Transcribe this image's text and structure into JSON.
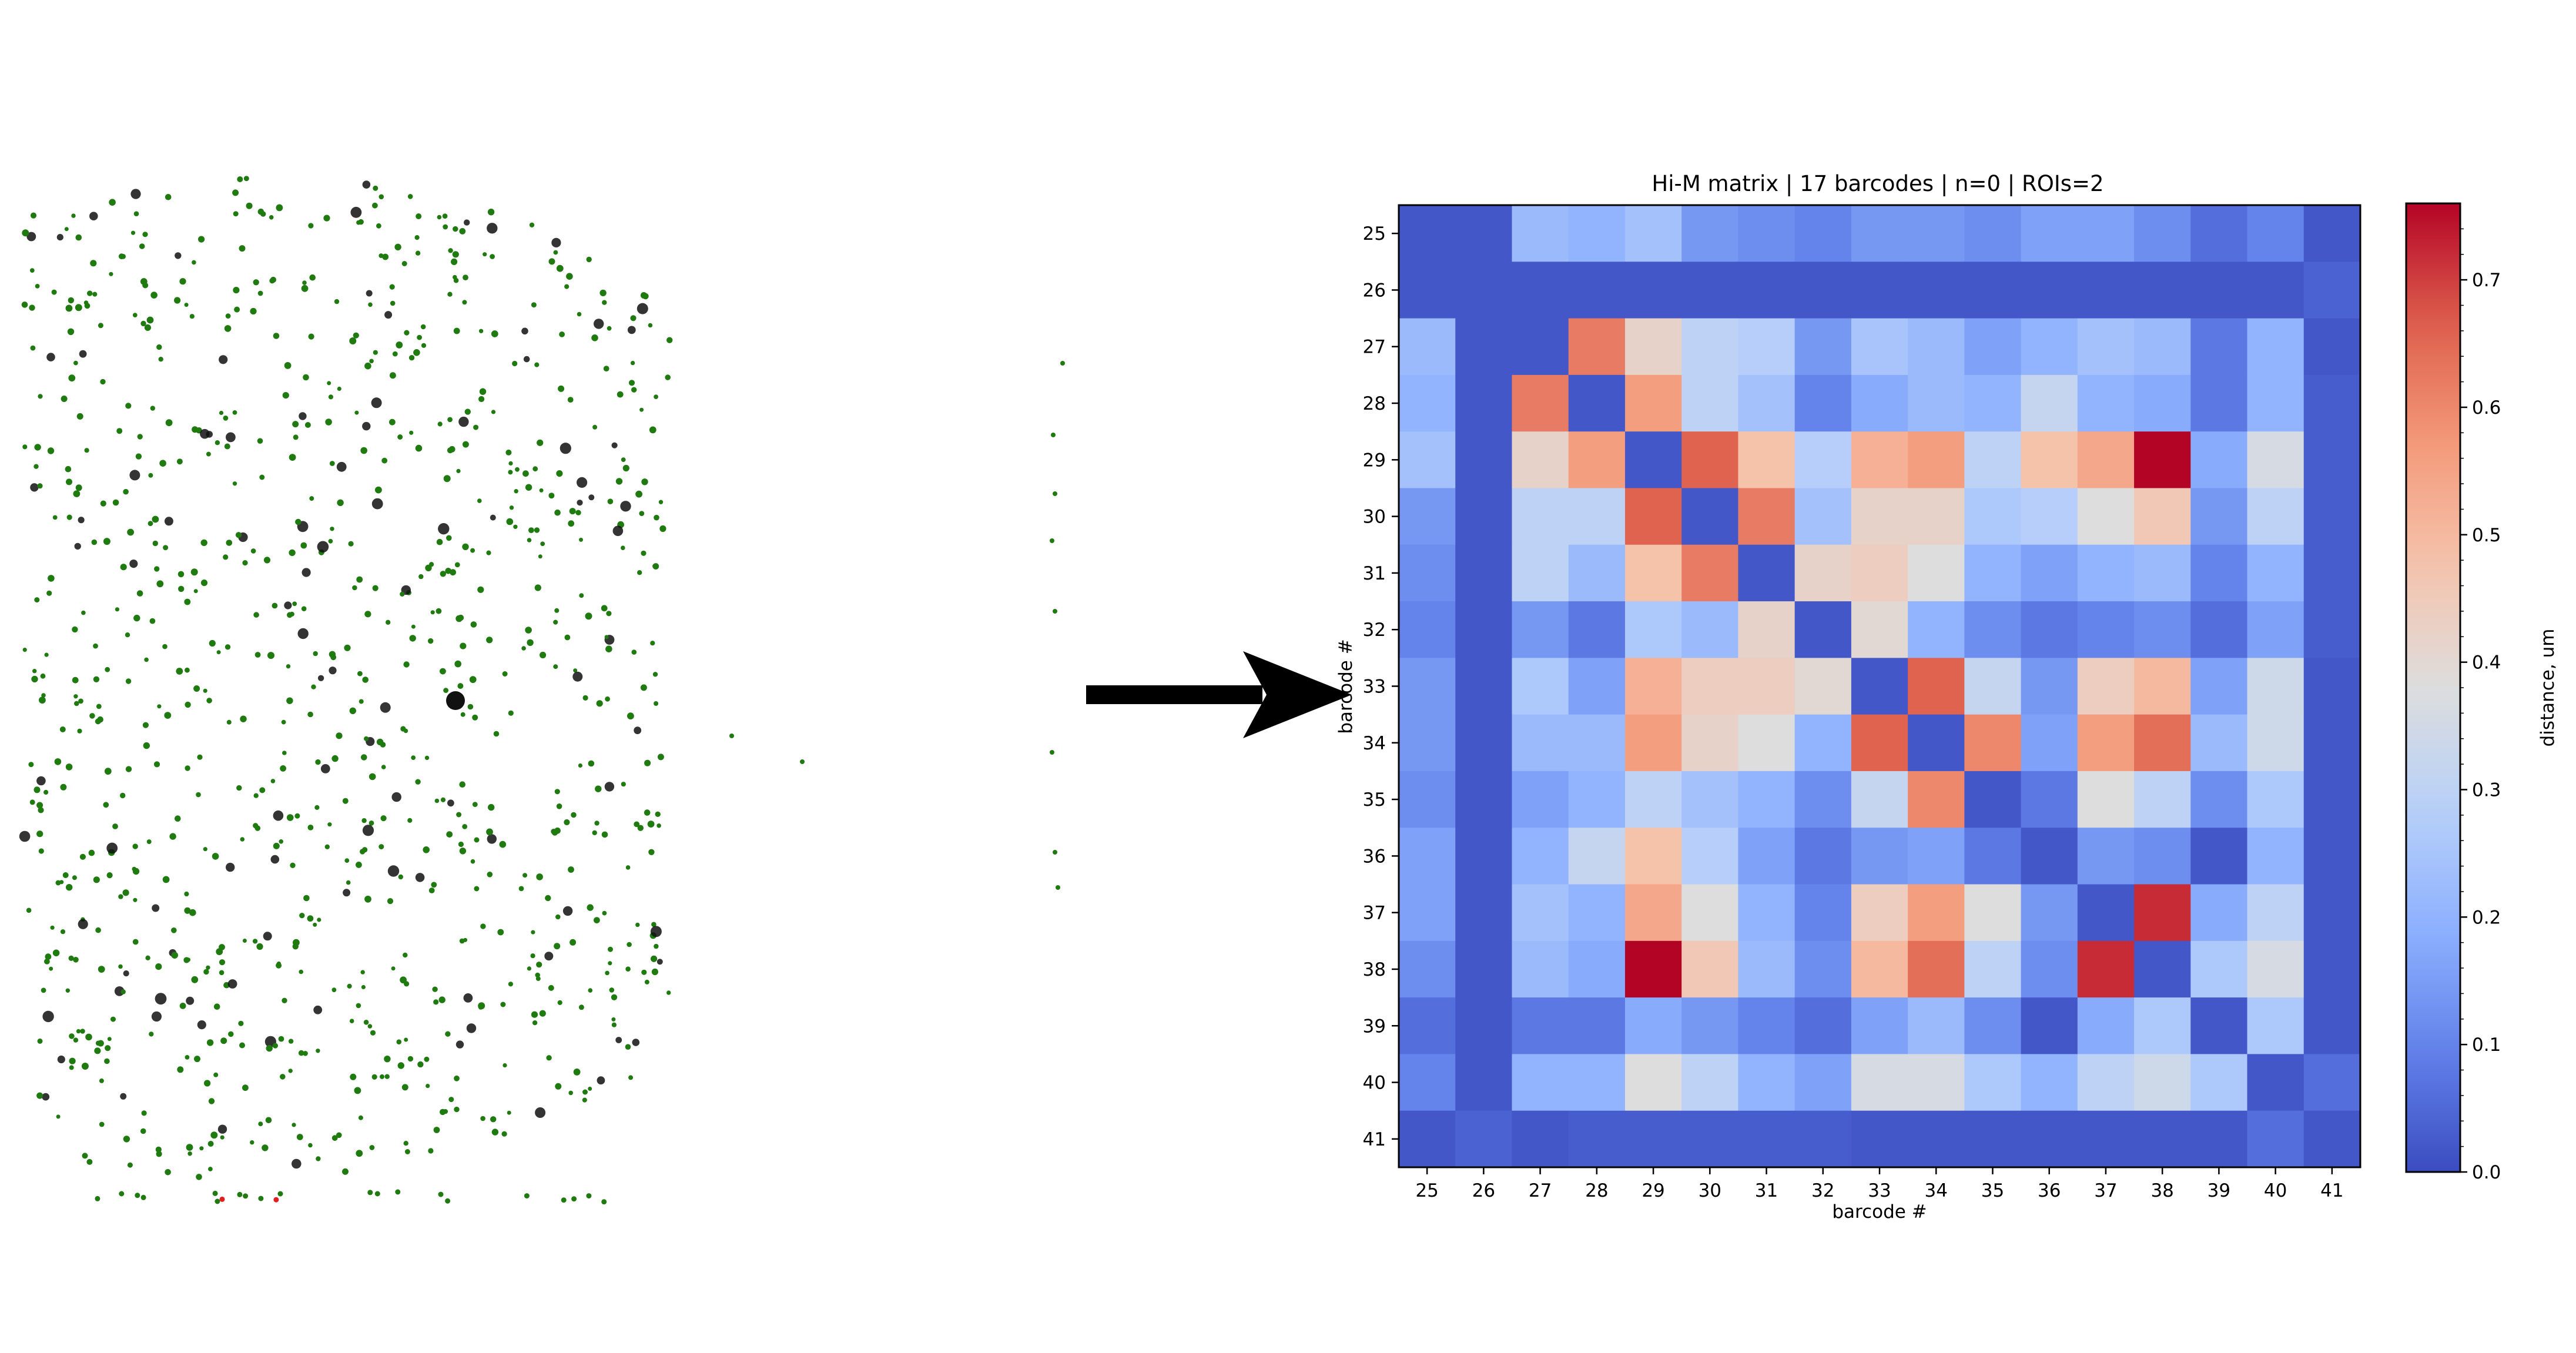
{
  "chart_data": [
    {
      "type": "scatter",
      "title": "",
      "xlabel": "",
      "ylabel": "",
      "grid": false,
      "legend": "none",
      "description_colors": {
        "spot": "#1f7a10",
        "dark_spot": "#111111",
        "red_spot": "#e02020"
      }
    },
    {
      "type": "heatmap",
      "title": "Hi-M matrix | 17 barcodes | n=0 | ROIs=2",
      "xlabel": "barcode #",
      "ylabel": "barcode #",
      "categories": [
        "25",
        "26",
        "27",
        "28",
        "29",
        "30",
        "31",
        "32",
        "33",
        "34",
        "35",
        "36",
        "37",
        "38",
        "39",
        "40",
        "41"
      ],
      "colorbar": {
        "label": "distance, um",
        "range": [
          0.0,
          0.76
        ],
        "ticks": [
          "0.0",
          "0.1",
          "0.2",
          "0.3",
          "0.4",
          "0.5",
          "0.6",
          "0.7"
        ],
        "colormap": "coolwarm"
      },
      "matrix": [
        [
          0.02,
          0.02,
          0.22,
          0.2,
          0.24,
          0.14,
          0.12,
          0.1,
          0.14,
          0.14,
          0.12,
          0.16,
          0.16,
          0.12,
          0.06,
          0.1,
          0.02
        ],
        [
          0.02,
          0.02,
          0.02,
          0.02,
          0.02,
          0.02,
          0.02,
          0.02,
          0.02,
          0.02,
          0.02,
          0.02,
          0.02,
          0.02,
          0.02,
          0.02,
          0.04
        ],
        [
          0.22,
          0.02,
          0.02,
          0.62,
          0.42,
          0.3,
          0.28,
          0.14,
          0.25,
          0.22,
          0.16,
          0.2,
          0.24,
          0.22,
          0.08,
          0.2,
          0.02
        ],
        [
          0.2,
          0.02,
          0.62,
          0.02,
          0.56,
          0.3,
          0.24,
          0.1,
          0.18,
          0.22,
          0.2,
          0.32,
          0.2,
          0.18,
          0.08,
          0.2,
          0.03
        ],
        [
          0.24,
          0.02,
          0.42,
          0.56,
          0.02,
          0.66,
          0.48,
          0.28,
          0.52,
          0.56,
          0.3,
          0.48,
          0.54,
          0.76,
          0.18,
          0.36,
          0.03
        ],
        [
          0.14,
          0.02,
          0.3,
          0.3,
          0.66,
          0.02,
          0.62,
          0.24,
          0.42,
          0.42,
          0.26,
          0.28,
          0.38,
          0.46,
          0.14,
          0.3,
          0.03
        ],
        [
          0.12,
          0.02,
          0.3,
          0.22,
          0.48,
          0.62,
          0.02,
          0.42,
          0.44,
          0.38,
          0.2,
          0.16,
          0.2,
          0.22,
          0.1,
          0.2,
          0.03
        ],
        [
          0.1,
          0.02,
          0.14,
          0.08,
          0.26,
          0.22,
          0.42,
          0.02,
          0.4,
          0.2,
          0.12,
          0.08,
          0.1,
          0.12,
          0.06,
          0.16,
          0.03
        ],
        [
          0.14,
          0.02,
          0.26,
          0.16,
          0.52,
          0.44,
          0.44,
          0.4,
          0.02,
          0.66,
          0.32,
          0.14,
          0.44,
          0.5,
          0.16,
          0.34,
          0.02
        ],
        [
          0.14,
          0.02,
          0.22,
          0.22,
          0.56,
          0.42,
          0.38,
          0.2,
          0.66,
          0.02,
          0.6,
          0.16,
          0.56,
          0.64,
          0.22,
          0.34,
          0.02
        ],
        [
          0.12,
          0.02,
          0.16,
          0.2,
          0.3,
          0.24,
          0.2,
          0.12,
          0.32,
          0.6,
          0.02,
          0.08,
          0.38,
          0.3,
          0.12,
          0.26,
          0.02
        ],
        [
          0.16,
          0.02,
          0.2,
          0.32,
          0.48,
          0.28,
          0.16,
          0.08,
          0.14,
          0.16,
          0.08,
          0.02,
          0.14,
          0.12,
          0.02,
          0.2,
          0.02
        ],
        [
          0.16,
          0.02,
          0.24,
          0.2,
          0.54,
          0.38,
          0.2,
          0.1,
          0.44,
          0.56,
          0.38,
          0.14,
          0.02,
          0.72,
          0.18,
          0.3,
          0.02
        ],
        [
          0.12,
          0.02,
          0.22,
          0.18,
          0.76,
          0.46,
          0.22,
          0.12,
          0.5,
          0.64,
          0.3,
          0.12,
          0.72,
          0.02,
          0.26,
          0.36,
          0.02
        ],
        [
          0.06,
          0.02,
          0.08,
          0.08,
          0.18,
          0.14,
          0.1,
          0.06,
          0.16,
          0.22,
          0.12,
          0.02,
          0.18,
          0.26,
          0.02,
          0.26,
          0.02
        ],
        [
          0.1,
          0.02,
          0.2,
          0.2,
          0.38,
          0.3,
          0.2,
          0.16,
          0.36,
          0.36,
          0.26,
          0.2,
          0.3,
          0.34,
          0.26,
          0.02,
          0.06
        ],
        [
          0.02,
          0.04,
          0.02,
          0.03,
          0.03,
          0.03,
          0.03,
          0.03,
          0.02,
          0.02,
          0.02,
          0.02,
          0.02,
          0.02,
          0.02,
          0.06,
          0.02
        ]
      ]
    }
  ],
  "arrow": {
    "color": "#000000"
  }
}
